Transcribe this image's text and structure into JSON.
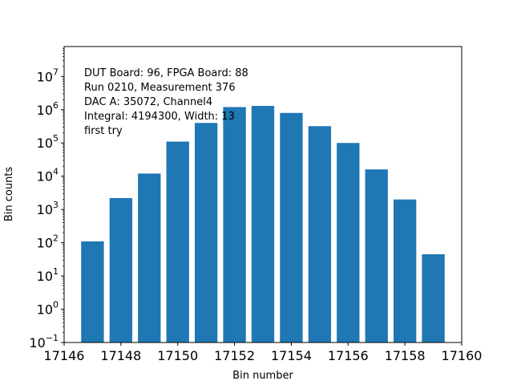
{
  "chart_data": {
    "type": "bar",
    "title": "",
    "xlabel": "Bin number",
    "ylabel": "Bin counts",
    "yscale": "log",
    "xlim": [
      17146,
      17160
    ],
    "ylim_log10": [
      -1,
      7.9
    ],
    "bar_width": 0.8,
    "x": [
      17147,
      17148,
      17149,
      17150,
      17151,
      17152,
      17153,
      17154,
      17155,
      17156,
      17157,
      17158,
      17159
    ],
    "values": [
      110,
      2200,
      12000,
      110000,
      400000,
      1200000,
      1300000,
      800000,
      320000,
      100000,
      16000,
      2000,
      45
    ],
    "color": "#1f77b4",
    "x_ticks": [
      17146,
      17148,
      17150,
      17152,
      17154,
      17156,
      17158,
      17160
    ],
    "x_tick_labels": [
      "17146",
      "17148",
      "17150",
      "17152",
      "17154",
      "17156",
      "17158",
      "17160"
    ],
    "y_ticks_exp": [
      -1,
      0,
      1,
      2,
      3,
      4,
      5,
      6,
      7
    ],
    "y_tick_labels": [
      {
        "base": "10",
        "exp": "−1"
      },
      {
        "base": "10",
        "exp": "0"
      },
      {
        "base": "10",
        "exp": "1"
      },
      {
        "base": "10",
        "exp": "2"
      },
      {
        "base": "10",
        "exp": "3"
      },
      {
        "base": "10",
        "exp": "4"
      },
      {
        "base": "10",
        "exp": "5"
      },
      {
        "base": "10",
        "exp": "6"
      },
      {
        "base": "10",
        "exp": "7"
      }
    ],
    "annotations": [
      "DUT Board: 96, FPGA Board: 88",
      "Run 0210, Measurement 376",
      "DAC A: 35072, Channel4",
      "Integral: 4194300, Width: 13",
      "first try"
    ]
  }
}
